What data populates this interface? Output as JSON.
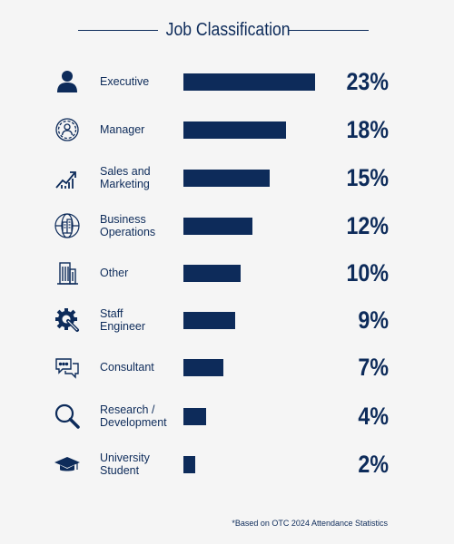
{
  "chart_data": {
    "type": "bar",
    "orientation": "horizontal",
    "title": "Job Classification",
    "categories": [
      "Executive",
      "Manager",
      "Sales and\nMarketing",
      "Business\nOperations",
      "Other",
      "Staff\nEngineer",
      "Consultant",
      "Research /\nDevelopment",
      "University\nStudent"
    ],
    "values": [
      23,
      18,
      15,
      12,
      10,
      9,
      7,
      4,
      2
    ],
    "value_labels": [
      "23%",
      "18%",
      "15%",
      "12%",
      "10%",
      "9%",
      "7%",
      "4%",
      "2%"
    ],
    "icons": [
      "person-icon",
      "gear-person-icon",
      "growth-chart-icon",
      "globe-buildings-icon",
      "building-icon",
      "gear-wrench-icon",
      "chat-bubbles-icon",
      "magnifier-icon",
      "graduation-cap-icon"
    ],
    "xlim": [
      0,
      23
    ],
    "legend": "none",
    "grid": false,
    "color": "#0d2b5a"
  },
  "footnote": "*Based on OTC 2024 Attendance Statistics",
  "colors": {
    "primary": "#0d2b5a",
    "background": "#f5f5f5"
  }
}
